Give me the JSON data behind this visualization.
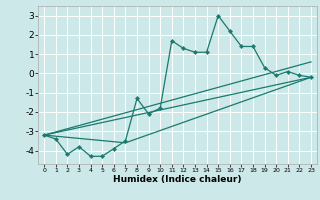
{
  "title": "",
  "xlabel": "Humidex (Indice chaleur)",
  "bg_color": "#cce8e8",
  "grid_color": "#ffffff",
  "line_color": "#1a7a6e",
  "xlim": [
    -0.5,
    23.5
  ],
  "ylim": [
    -4.7,
    3.5
  ],
  "yticks": [
    -4,
    -3,
    -2,
    -1,
    0,
    1,
    2,
    3
  ],
  "xticks": [
    0,
    1,
    2,
    3,
    4,
    5,
    6,
    7,
    8,
    9,
    10,
    11,
    12,
    13,
    14,
    15,
    16,
    17,
    18,
    19,
    20,
    21,
    22,
    23
  ],
  "line1_x": [
    0,
    1,
    2,
    3,
    4,
    5,
    6,
    7,
    8,
    9,
    10,
    11,
    12,
    13,
    14,
    15,
    16,
    17,
    18,
    19,
    20,
    21,
    22,
    23
  ],
  "line1_y": [
    -3.2,
    -3.4,
    -4.2,
    -3.8,
    -4.3,
    -4.3,
    -3.9,
    -3.5,
    -1.3,
    -2.1,
    -1.8,
    1.7,
    1.3,
    1.1,
    1.1,
    3.0,
    2.2,
    1.4,
    1.4,
    0.3,
    -0.1,
    0.1,
    -0.1,
    -0.2
  ],
  "line2_x": [
    0,
    23
  ],
  "line2_y": [
    -3.2,
    -0.2
  ],
  "line3_x": [
    0,
    7,
    23
  ],
  "line3_y": [
    -3.2,
    -3.6,
    -0.2
  ],
  "line4_x": [
    0,
    23
  ],
  "line4_y": [
    -3.2,
    0.6
  ]
}
